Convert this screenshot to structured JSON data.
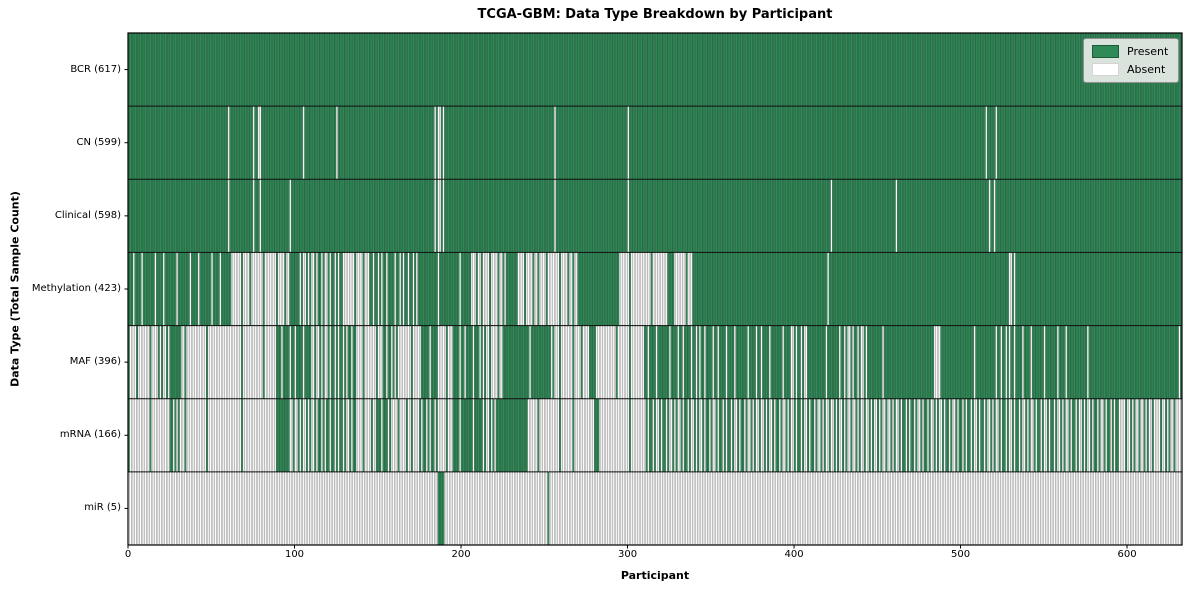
{
  "chart_data": {
    "type": "heatmap",
    "title": "TCGA-GBM: Data Type Breakdown by Participant",
    "xlabel": "Participant",
    "ylabel": "Data Type (Total Sample Count)",
    "x_ticks": [
      0,
      100,
      200,
      300,
      400,
      500,
      600
    ],
    "x_max": 633,
    "grid": false,
    "legend_position": "upper right",
    "legend_entries": [
      {
        "label": "Present",
        "color": "#2e8b57"
      },
      {
        "label": "Absent",
        "color": "#ffffff"
      }
    ],
    "colors": {
      "present": "#2e8b57",
      "absent": "#fdfdfd",
      "bar_edge": "rgba(25,25,25,0.40)",
      "row_separator": "#111111",
      "plot_border": "#000000",
      "tick": "#000000"
    },
    "rows": [
      {
        "label": "BCR (617)",
        "data_type": "BCR",
        "total_samples": 617,
        "runs": [
          [
            0,
            633,
            1
          ]
        ]
      },
      {
        "label": "CN (599)",
        "data_type": "CN",
        "total_samples": 599,
        "runs": [
          [
            0,
            60,
            1
          ],
          [
            60,
            61,
            0
          ],
          [
            61,
            75,
            1
          ],
          [
            75,
            76,
            0
          ],
          [
            76,
            78,
            1
          ],
          [
            78,
            80,
            0
          ],
          [
            80,
            105,
            1
          ],
          [
            105,
            106,
            0
          ],
          [
            106,
            125,
            1
          ],
          [
            125,
            126,
            0
          ],
          [
            126,
            184,
            1
          ],
          [
            184,
            190,
            0.35
          ],
          [
            190,
            256,
            1
          ],
          [
            256,
            257,
            0
          ],
          [
            257,
            300,
            1
          ],
          [
            300,
            301,
            0
          ],
          [
            301,
            515,
            1
          ],
          [
            515,
            516,
            0
          ],
          [
            516,
            521,
            1
          ],
          [
            521,
            522,
            0
          ],
          [
            522,
            633,
            1
          ]
        ]
      },
      {
        "label": "Clinical (598)",
        "data_type": "Clinical",
        "total_samples": 598,
        "runs": [
          [
            0,
            60,
            1
          ],
          [
            60,
            61,
            0
          ],
          [
            61,
            75,
            1
          ],
          [
            75,
            76,
            0
          ],
          [
            76,
            79,
            1
          ],
          [
            79,
            80,
            0
          ],
          [
            80,
            97,
            1
          ],
          [
            97,
            98,
            0
          ],
          [
            98,
            184,
            1
          ],
          [
            184,
            190,
            0.35
          ],
          [
            190,
            256,
            1
          ],
          [
            256,
            257,
            0
          ],
          [
            257,
            300,
            1
          ],
          [
            300,
            301,
            0
          ],
          [
            301,
            422,
            1
          ],
          [
            422,
            423,
            0
          ],
          [
            423,
            461,
            1
          ],
          [
            461,
            462,
            0
          ],
          [
            462,
            517,
            1
          ],
          [
            517,
            518,
            0
          ],
          [
            518,
            520,
            1
          ],
          [
            520,
            521,
            0
          ],
          [
            521,
            633,
            1
          ]
        ]
      },
      {
        "label": "Methylation (423)",
        "data_type": "Methylation",
        "total_samples": 423,
        "runs": [
          [
            0,
            62,
            0.85
          ],
          [
            62,
            97,
            0.12
          ],
          [
            97,
            103,
            1
          ],
          [
            103,
            130,
            0.5
          ],
          [
            130,
            144,
            0.15
          ],
          [
            144,
            175,
            0.65
          ],
          [
            175,
            206,
            0.9
          ],
          [
            206,
            227,
            0.25
          ],
          [
            227,
            233,
            1
          ],
          [
            233,
            270,
            0.2
          ],
          [
            270,
            295,
            1
          ],
          [
            295,
            316,
            0.1
          ],
          [
            316,
            324,
            0
          ],
          [
            324,
            327,
            1
          ],
          [
            327,
            339,
            0.15
          ],
          [
            339,
            420,
            1
          ],
          [
            420,
            421,
            0
          ],
          [
            421,
            528,
            1
          ],
          [
            528,
            534,
            0.5
          ],
          [
            534,
            633,
            1
          ]
        ]
      },
      {
        "label": "MAF (396)",
        "data_type": "MAF",
        "total_samples": 396,
        "runs": [
          [
            0,
            18,
            0.12
          ],
          [
            18,
            27,
            0.5
          ],
          [
            27,
            32,
            1
          ],
          [
            32,
            90,
            0.08
          ],
          [
            90,
            109,
            0.75
          ],
          [
            109,
            121,
            0.4
          ],
          [
            121,
            137,
            0.6
          ],
          [
            137,
            152,
            0.15
          ],
          [
            152,
            162,
            0.6
          ],
          [
            162,
            176,
            0.1
          ],
          [
            176,
            187,
            0.8
          ],
          [
            187,
            195,
            0.1
          ],
          [
            195,
            211,
            0.8
          ],
          [
            211,
            225,
            0.3
          ],
          [
            225,
            256,
            0.92
          ],
          [
            256,
            277,
            0.15
          ],
          [
            277,
            281,
            1
          ],
          [
            281,
            310,
            0.1
          ],
          [
            310,
            331,
            0.8
          ],
          [
            331,
            360,
            0.7
          ],
          [
            360,
            399,
            0.85
          ],
          [
            399,
            408,
            0.5
          ],
          [
            408,
            430,
            0.9
          ],
          [
            430,
            445,
            0.5
          ],
          [
            445,
            484,
            0.95
          ],
          [
            484,
            487,
            0
          ],
          [
            487,
            524,
            0.95
          ],
          [
            524,
            535,
            0.6
          ],
          [
            535,
            565,
            0.85
          ],
          [
            565,
            633,
            0.97
          ]
        ]
      },
      {
        "label": "mRNA (166)",
        "data_type": "mRNA",
        "total_samples": 166,
        "runs": [
          [
            0,
            24,
            0.06
          ],
          [
            24,
            31,
            0.6
          ],
          [
            31,
            90,
            0.05
          ],
          [
            90,
            96,
            1
          ],
          [
            96,
            109,
            0.35
          ],
          [
            109,
            121,
            0.6
          ],
          [
            121,
            137,
            0.5
          ],
          [
            137,
            150,
            0.25
          ],
          [
            150,
            156,
            0.8
          ],
          [
            156,
            176,
            0.25
          ],
          [
            176,
            187,
            0.55
          ],
          [
            187,
            195,
            0.1
          ],
          [
            195,
            213,
            0.85
          ],
          [
            213,
            221,
            0.4
          ],
          [
            221,
            240,
            0.95
          ],
          [
            240,
            281,
            0.08
          ],
          [
            281,
            283,
            1
          ],
          [
            283,
            310,
            0.08
          ],
          [
            310,
            345,
            0.45
          ],
          [
            345,
            380,
            0.5
          ],
          [
            380,
            420,
            0.45
          ],
          [
            420,
            470,
            0.4
          ],
          [
            470,
            530,
            0.5
          ],
          [
            530,
            565,
            0.45
          ],
          [
            565,
            595,
            0.5
          ],
          [
            595,
            633,
            0.3
          ]
        ]
      },
      {
        "label": "miR (5)",
        "data_type": "miR",
        "total_samples": 5,
        "runs": [
          [
            0,
            186,
            0
          ],
          [
            186,
            190,
            1
          ],
          [
            190,
            252,
            0
          ],
          [
            252,
            253,
            1
          ],
          [
            253,
            633,
            0
          ]
        ]
      }
    ]
  }
}
